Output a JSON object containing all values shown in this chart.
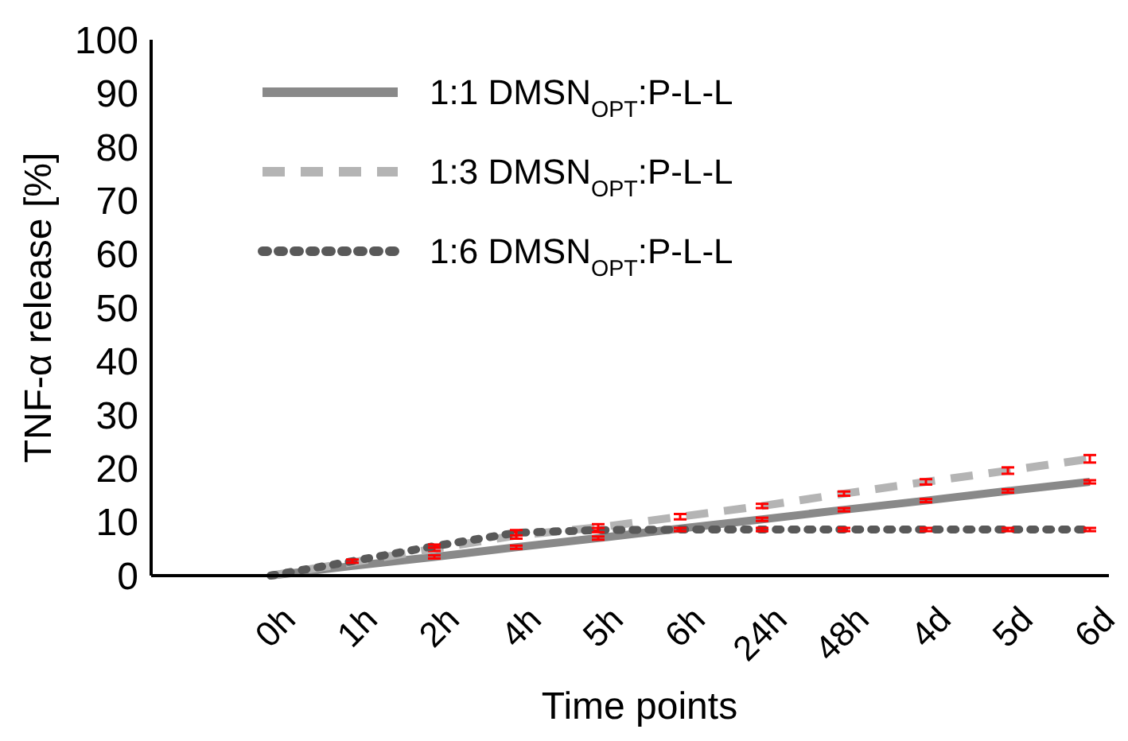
{
  "chart_data": {
    "type": "line",
    "xlabel": "Time points",
    "ylabel": "TNF-α release [%]",
    "categories": [
      "0h",
      "1h",
      "2h",
      "4h",
      "5h",
      "6h",
      "24h",
      "48h",
      "4d",
      "5d",
      "6d"
    ],
    "ylim": [
      0,
      100
    ],
    "yticks": [
      0,
      10,
      20,
      30,
      40,
      50,
      60,
      70,
      80,
      90,
      100
    ],
    "grid": false,
    "legend": "top left",
    "marker": "none",
    "series": [
      {
        "name": "1:1 DMSN$_{OPT}$:P-L-L",
        "color": "#898989",
        "line_style": "solid",
        "values": [
          0,
          1.8,
          3.5,
          5.3,
          7,
          8.8,
          10.5,
          12.3,
          14,
          15.8,
          17.5
        ],
        "errors": [
          null,
          null,
          0.3,
          0.3,
          0.3,
          null,
          0.3,
          0.3,
          0.3,
          0.3,
          0.3
        ]
      },
      {
        "name": "1:3 DMSN$_{OPT}$:P-L-L",
        "color": "#b4b4b4",
        "line_style": "dashed",
        "values": [
          0,
          2.5,
          5,
          7.5,
          9,
          11,
          13,
          15.3,
          17.5,
          19.6,
          21.8
        ],
        "errors": [
          null,
          null,
          0.4,
          0.6,
          0.6,
          0.5,
          0.4,
          0.4,
          0.5,
          0.6,
          0.7
        ]
      },
      {
        "name": "1:6 DMSN$_{OPT}$:P-L-L",
        "color": "#595959",
        "line_style": "dotted",
        "values": [
          0,
          2.7,
          5.5,
          8,
          8.5,
          8.6,
          8.6,
          8.6,
          8.6,
          8.6,
          8.6
        ],
        "errors": [
          null,
          0.3,
          0.3,
          0.5,
          0.4,
          0.3,
          0.3,
          0.3,
          0.3,
          0.3,
          0.3
        ]
      }
    ]
  }
}
